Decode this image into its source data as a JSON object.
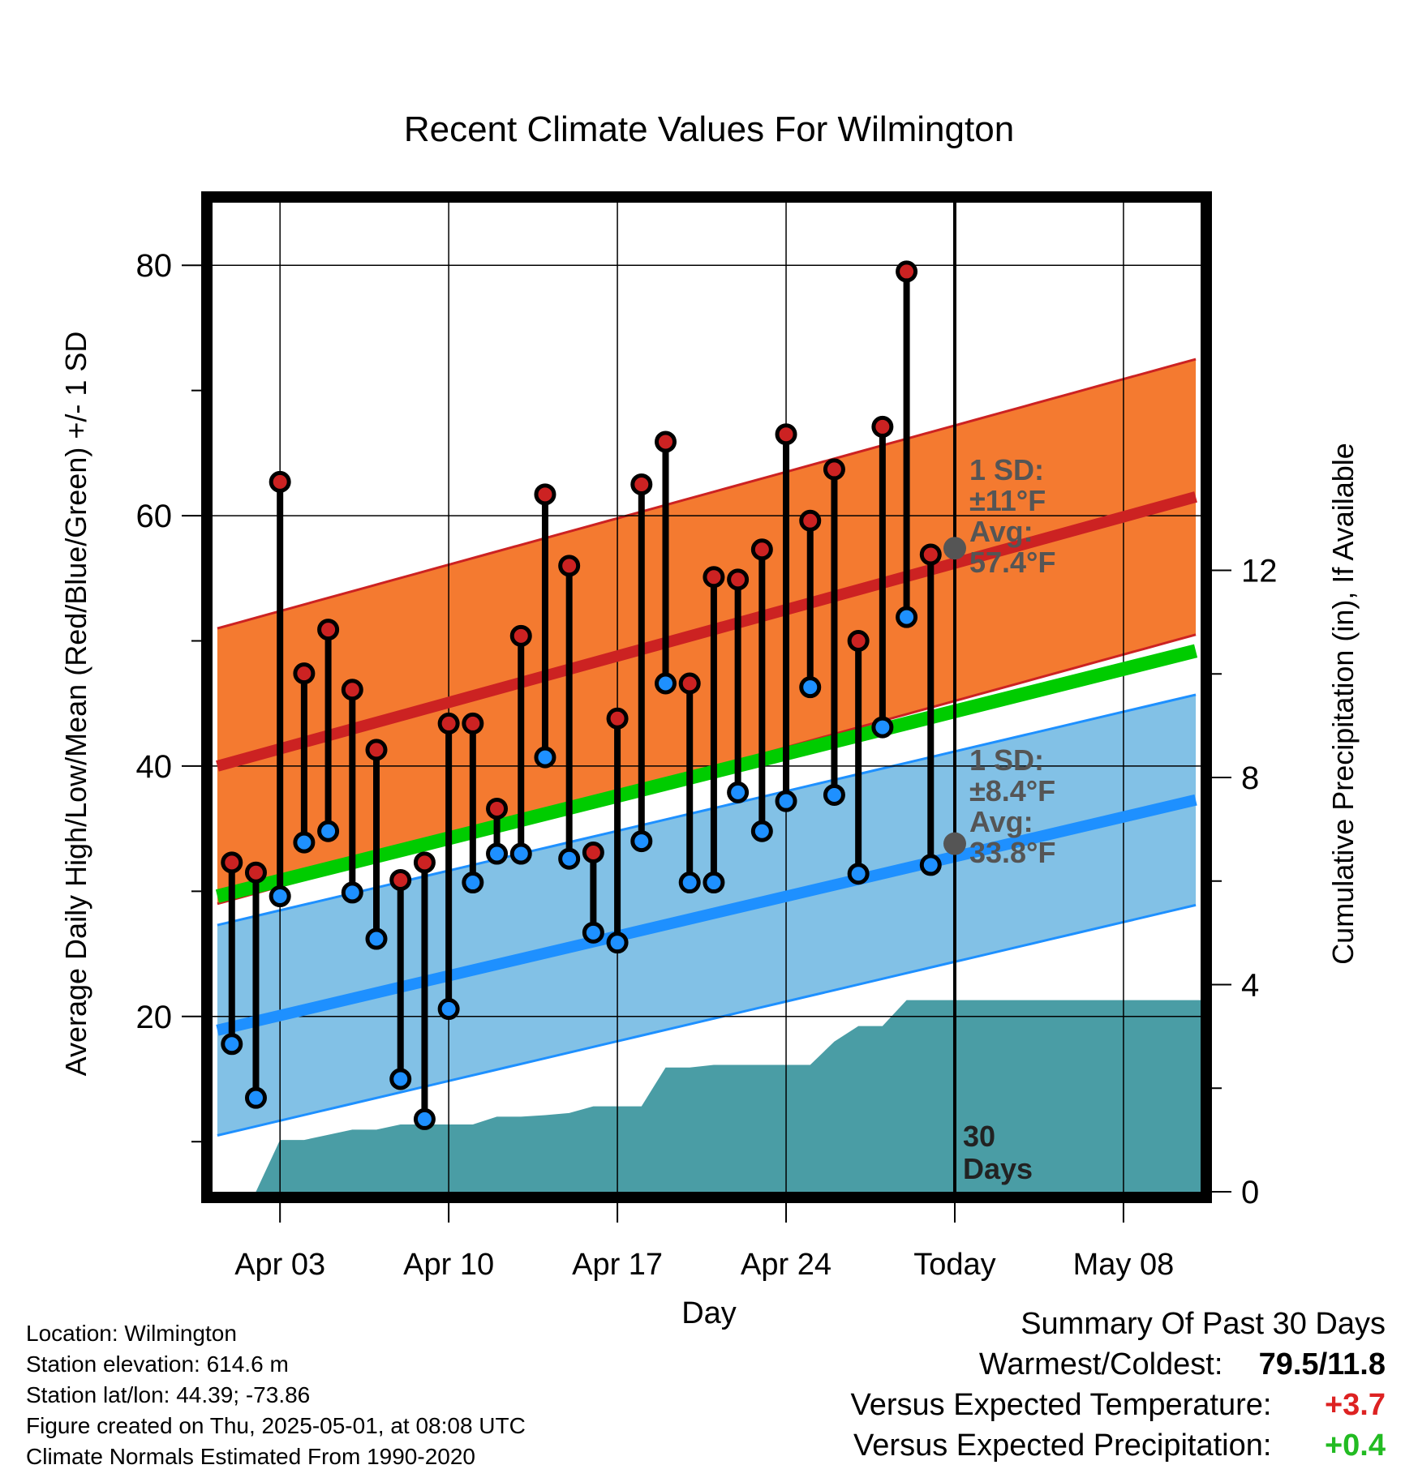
{
  "chart_data": {
    "type": "line",
    "title": "Recent Climate Values For Wilmington",
    "xlabel": "Day",
    "ylabel": "Average Daily High/Low/Mean (Red/Blue/Green) +/- 1 SD",
    "y2label": "Cumulative Precipitation (in), If Available",
    "ylim": [
      6,
      85
    ],
    "y2lim": [
      0,
      19.1
    ],
    "x_ticks": [
      "Apr 03",
      "Apr 10",
      "Apr 17",
      "Apr 24",
      "Today",
      "May 08"
    ],
    "x_tick_days": [
      3,
      10,
      17,
      24,
      31,
      38
    ],
    "xlim": [
      0.2,
      41.2
    ],
    "y_ticks": [
      "20",
      "40",
      "60",
      "80"
    ],
    "y_tick_values": [
      20,
      40,
      60,
      80
    ],
    "y2_ticks": [
      "0",
      "4",
      "8",
      "12"
    ],
    "y2_tick_values": [
      0,
      4,
      8,
      12
    ],
    "grid": true,
    "today_day": 31,
    "today_label": "30\nDays",
    "days": [
      1,
      2,
      3,
      4,
      5,
      6,
      7,
      8,
      9,
      10,
      11,
      12,
      13,
      14,
      15,
      16,
      17,
      18,
      19,
      20,
      21,
      22,
      23,
      24,
      25,
      26,
      27,
      28,
      29,
      30
    ],
    "highs": [
      32.3,
      31.5,
      62.7,
      47.4,
      50.9,
      46.1,
      41.3,
      30.9,
      32.3,
      43.4,
      43.4,
      36.6,
      50.4,
      61.7,
      56.0,
      33.1,
      43.8,
      62.5,
      65.9,
      46.6,
      55.1,
      54.9,
      57.3,
      66.5,
      59.6,
      63.7,
      50.0,
      67.1,
      79.5,
      56.9
    ],
    "lows": [
      17.8,
      13.5,
      29.6,
      33.9,
      34.8,
      29.9,
      26.2,
      15.0,
      11.8,
      20.6,
      30.7,
      33.0,
      33.0,
      40.7,
      32.6,
      26.7,
      25.9,
      34.0,
      46.6,
      30.7,
      30.7,
      37.9,
      34.8,
      37.2,
      46.3,
      37.7,
      31.4,
      43.1,
      51.9,
      32.1
    ],
    "normal_days": [
      0.4,
      41.0
    ],
    "normal_high": {
      "start": 40.0,
      "end": 61.5,
      "sd": 11
    },
    "normal_low": {
      "start": 18.9,
      "end": 37.3,
      "sd": 8.4
    },
    "normal_mean": {
      "start": 29.6,
      "end": 49.2
    },
    "annot_high": {
      "line1": "1 SD:",
      "line2": "±11°F",
      "line3": "Avg:",
      "line4": "57.4°F",
      "value": 57.4
    },
    "annot_low": {
      "line1": "1 SD:",
      "line2": "±8.4°F",
      "line3": "Avg:",
      "line4": "33.8°F",
      "value": 33.8
    },
    "precip_cum": [
      0.0,
      0.0,
      1.0,
      1.0,
      1.1,
      1.2,
      1.2,
      1.3,
      1.3,
      1.3,
      1.3,
      1.45,
      1.45,
      1.48,
      1.52,
      1.65,
      1.65,
      1.65,
      2.4,
      2.4,
      2.45,
      2.45,
      2.45,
      2.45,
      2.45,
      2.9,
      3.2,
      3.2,
      3.7,
      3.7,
      3.7,
      3.7,
      3.7,
      3.7,
      3.7,
      3.7,
      3.7,
      3.7,
      3.7,
      3.7,
      3.7
    ],
    "colors": {
      "high": "#cc2222",
      "low": "#1e90ff",
      "mean": "#00cc00",
      "high_band": "#f47a30",
      "low_band": "#82c1e6",
      "precip": "#4a9da5",
      "annot": "#555555"
    }
  },
  "info": {
    "location": "Location: Wilmington",
    "elevation": "Station elevation: 614.6 m",
    "latlon": "Station lat/lon: 44.39; -73.86",
    "created": "Figure created on Thu, 2025-05-01, at 08:08 UTC",
    "normals": "Climate Normals Estimated From 1990-2020"
  },
  "summary": {
    "title": "Summary Of Past 30 Days",
    "warm_cold_label": "Warmest/Coldest:",
    "warm_cold_value": "79.5/11.8",
    "temp_label": "Versus Expected Temperature:",
    "temp_value": "+3.7",
    "temp_color": "#dd2222",
    "precip_label": "Versus Expected Precipitation:",
    "precip_value": "+0.4",
    "precip_color": "#22bb22"
  }
}
